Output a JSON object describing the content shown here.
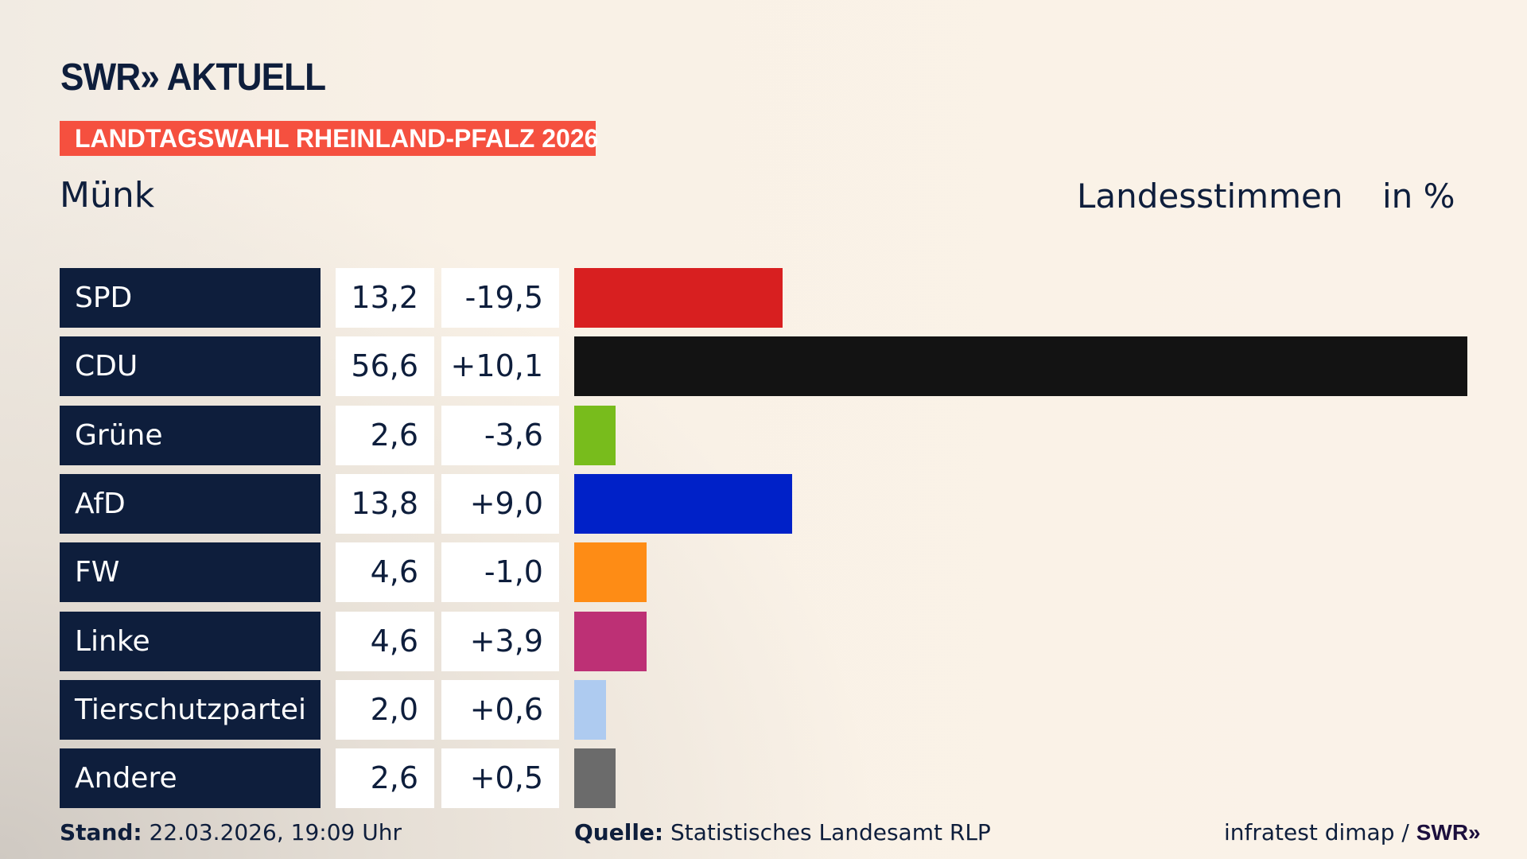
{
  "brand": {
    "logo_text": "SWR» AKTUELL"
  },
  "banner": "LANDTAGSWAHL RHEINLAND-PFALZ 2026",
  "region": "Münk",
  "measure": "Landesstimmen",
  "unit": "in %",
  "chart_data": {
    "type": "bar",
    "orientation": "horizontal",
    "categories": [
      "SPD",
      "CDU",
      "Grüne",
      "AfD",
      "FW",
      "Linke",
      "Tierschutzpartei",
      "Andere"
    ],
    "values": [
      13.2,
      56.6,
      2.6,
      13.8,
      4.6,
      4.6,
      2.0,
      2.6
    ],
    "value_labels": [
      "13,2",
      "56,6",
      "2,6",
      "13,8",
      "4,6",
      "4,6",
      "2,0",
      "2,6"
    ],
    "diff_labels": [
      "-19,5",
      "+10,1",
      "-3,6",
      "+9,0",
      "-1,0",
      "+3,9",
      "+0,6",
      "+0,5"
    ],
    "colors": [
      "#d81f20",
      "#131313",
      "#78bc1c",
      "#0021c8",
      "#fe8c15",
      "#bd3075",
      "#aecbf0",
      "#6b6b6b"
    ],
    "xlim": [
      0,
      56.6
    ]
  },
  "footer": {
    "stand_label": "Stand:",
    "stand_value": " 22.03.2026, 19:09 Uhr",
    "source_label": "Quelle:",
    "source_value": " Statistisches Landesamt RLP",
    "credit": "infratest dimap / ",
    "credit_brand": "SWR»"
  }
}
